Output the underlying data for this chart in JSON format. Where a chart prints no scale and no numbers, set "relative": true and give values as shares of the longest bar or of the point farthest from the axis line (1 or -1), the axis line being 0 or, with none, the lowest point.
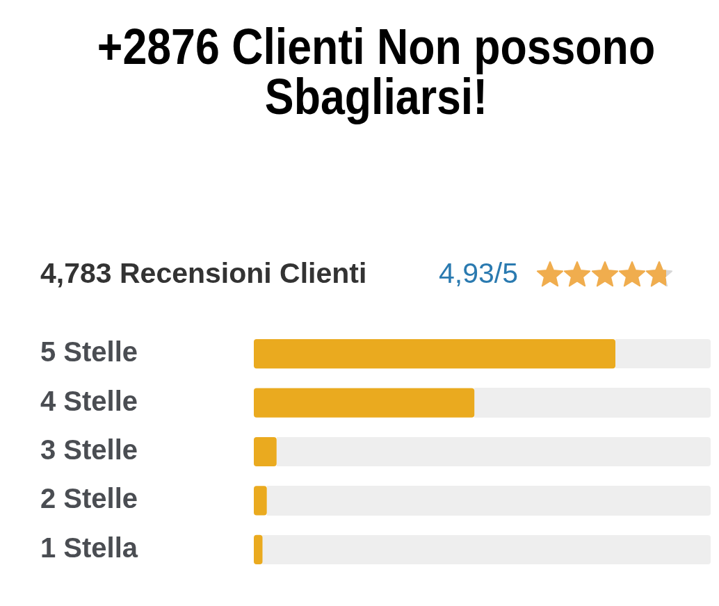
{
  "chart_data": {
    "type": "bar",
    "orientation": "horizontal",
    "relative": true,
    "title": "+2876 Clienti Non possono Sbagliarsi!",
    "subtitle": "4,783 Recensioni Clienti",
    "annotations": [
      "4,93/5"
    ],
    "categories": [
      "5 Stelle",
      "4 Stelle",
      "3 Stelle",
      "2 Stelle",
      "1 Stella"
    ],
    "values": [
      1,
      0.61,
      0.063,
      0.036,
      0.024
    ],
    "color": "#eaaa1f"
  }
}
